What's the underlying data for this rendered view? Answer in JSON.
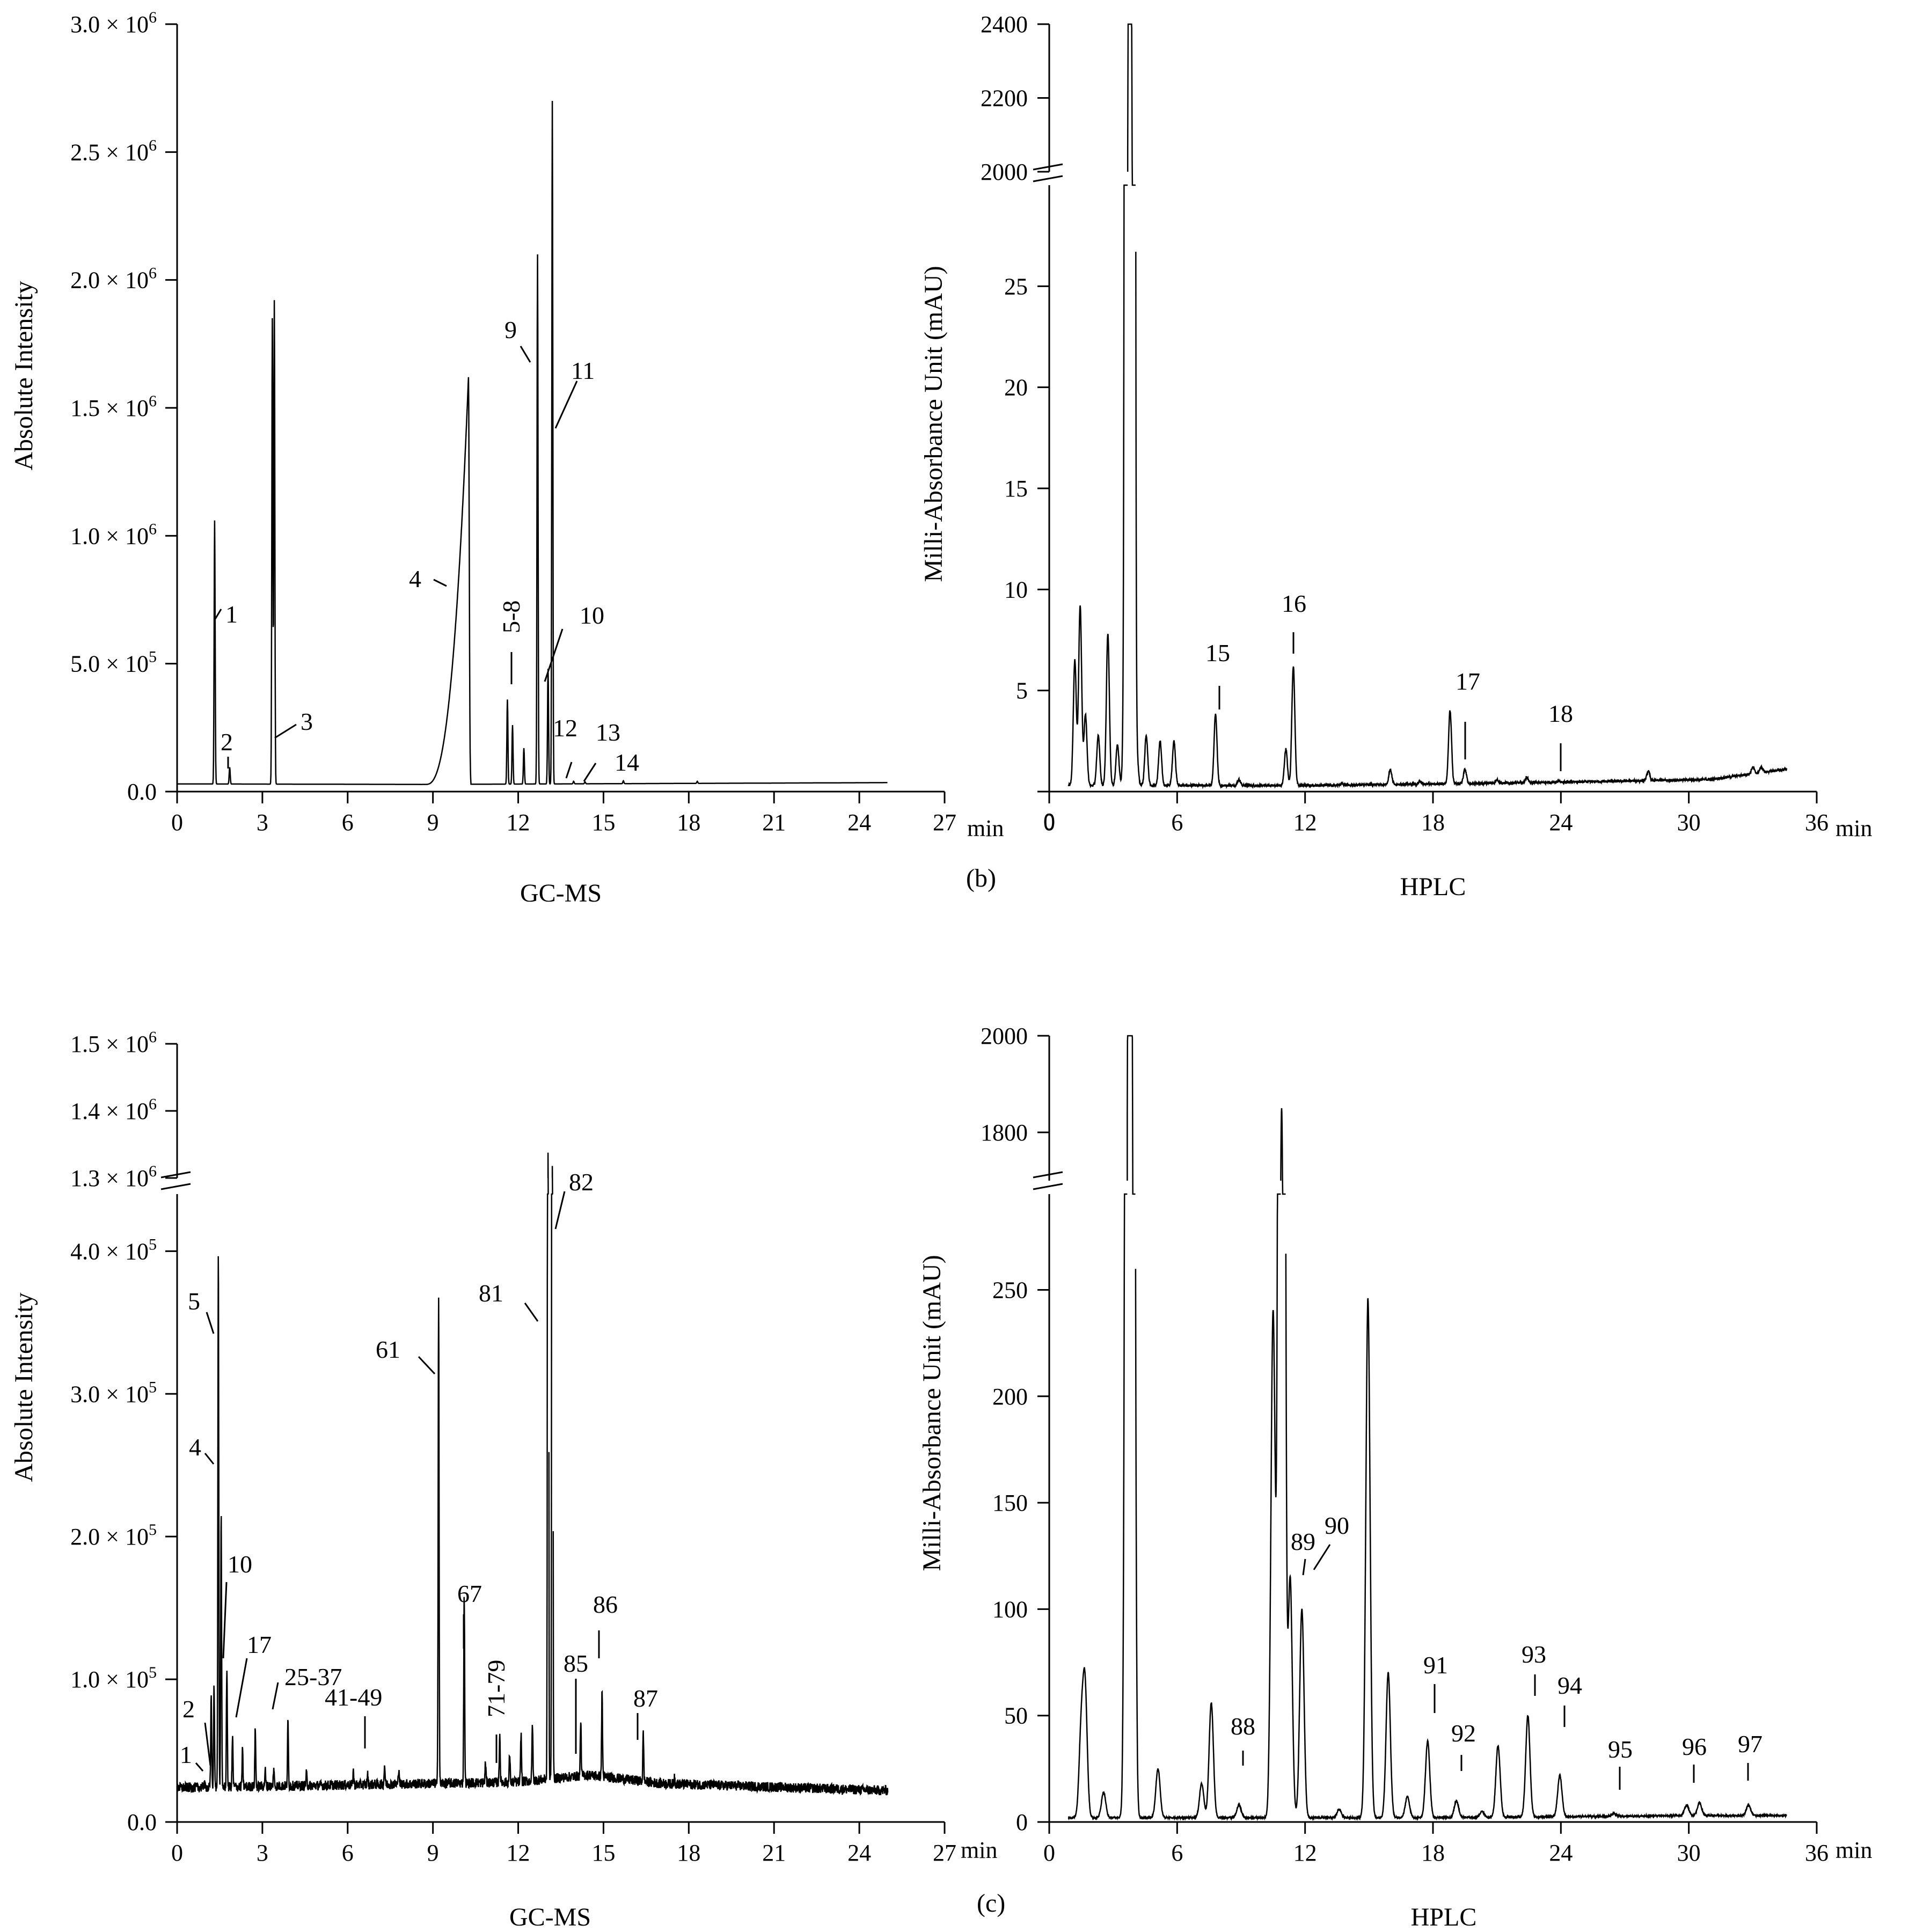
{
  "chart_data": [
    {
      "id": "a",
      "type": "line",
      "technique": "GC-MS",
      "xlabel": "GC-MS",
      "ylabel": "Absolute Intensity",
      "x_unit": "min",
      "xlim": [
        0,
        27
      ],
      "ylim": [
        0,
        3000000
      ],
      "x_ticks": [
        "0",
        "3",
        "6",
        "9",
        "12",
        "15",
        "18",
        "21",
        "24",
        "27"
      ],
      "y_ticks": [
        {
          "value": 0,
          "label": "0.0"
        },
        {
          "value": 500000,
          "label": "5.0 × 10",
          "exp": "5"
        },
        {
          "value": 1000000,
          "label": "1.0 × 10",
          "exp": "6"
        },
        {
          "value": 1500000,
          "label": "1.5 × 10",
          "exp": "6"
        },
        {
          "value": 2000000,
          "label": "2.0 × 10",
          "exp": "6"
        },
        {
          "value": 2500000,
          "label": "2.5 × 10",
          "exp": "6"
        },
        {
          "value": 3000000,
          "label": "3.0 × 10",
          "exp": "6"
        }
      ],
      "baseline": [
        [
          0,
          30000
        ],
        [
          8.6,
          28000
        ],
        [
          25,
          35000
        ]
      ],
      "broad_peaks": [
        {
          "x": 10.25,
          "y": 1620000,
          "left_width": 1.5,
          "right_width": 0.08
        }
      ],
      "peaks": [
        [
          1.32,
          1060000
        ],
        [
          1.85,
          95000
        ],
        [
          3.35,
          1850000
        ],
        [
          3.42,
          1920000
        ],
        [
          11.62,
          360000
        ],
        [
          11.8,
          260000
        ],
        [
          12.2,
          170000
        ],
        [
          12.68,
          2100000
        ],
        [
          13.05,
          480000
        ],
        [
          13.2,
          2700000
        ],
        [
          13.95,
          40000
        ],
        [
          14.35,
          38000
        ],
        [
          15.7,
          42000
        ],
        [
          18.3,
          40000
        ]
      ],
      "annotations": [
        "1",
        "2",
        "3",
        "4",
        "5-8",
        "9",
        "10",
        "11",
        "12",
        "13",
        "14"
      ]
    },
    {
      "id": "b",
      "type": "line",
      "technique": "HPLC",
      "panel_label": "(b)",
      "xlabel": "HPLC",
      "ylabel": "Milli-Absorbance Unit (mAU)",
      "x_unit": "min",
      "xlim": [
        0,
        36
      ],
      "ylim_lower": [
        0,
        30
      ],
      "ylim_upper": [
        2000,
        2400
      ],
      "x_ticks": [
        "0",
        "6",
        "12",
        "18",
        "24",
        "30",
        "36"
      ],
      "y_ticks_lower": [
        "5",
        "10",
        "15",
        "20",
        "25"
      ],
      "y_ticks_upper": [
        "2000",
        "2200",
        "2400"
      ],
      "baseline": [
        [
          0.9,
          0.3
        ],
        [
          12,
          0.3
        ],
        [
          20,
          0.4
        ],
        [
          26,
          0.5
        ],
        [
          31,
          0.6
        ],
        [
          34.5,
          1.1
        ]
      ],
      "peaks": [
        [
          1.2,
          6.5
        ],
        [
          1.45,
          9.2
        ],
        [
          1.7,
          3.8
        ],
        [
          2.3,
          2.8
        ],
        [
          2.75,
          7.8
        ],
        [
          3.2,
          2.3
        ],
        [
          3.55,
          6.5
        ],
        [
          3.72,
          2280
        ],
        [
          3.85,
          2250
        ],
        [
          4.1,
          2.0
        ],
        [
          4.55,
          2.8
        ],
        [
          5.2,
          2.5
        ],
        [
          5.85,
          2.5
        ],
        [
          7.8,
          3.8
        ],
        [
          8.9,
          0.6
        ],
        [
          11.1,
          2.1
        ],
        [
          11.45,
          6.2
        ],
        [
          13.7,
          0.4
        ],
        [
          16,
          1.1
        ],
        [
          17.4,
          0.5
        ],
        [
          18.8,
          4.0
        ],
        [
          19.5,
          1.1
        ],
        [
          21,
          0.6
        ],
        [
          22.4,
          0.7
        ],
        [
          23.9,
          0.5
        ],
        [
          28.1,
          1.0
        ],
        [
          33,
          1.2
        ],
        [
          33.4,
          1.2
        ]
      ],
      "annotations": [
        "15",
        "16",
        "17",
        "18"
      ]
    },
    {
      "id": "c-left",
      "type": "line",
      "technique": "GC-MS",
      "xlabel": "GC-MS",
      "ylabel": "Absolute Intensity",
      "x_unit": "min",
      "xlim": [
        0,
        27
      ],
      "ylim_lower": [
        0,
        440000
      ],
      "ylim_upper": [
        1300000,
        1500000
      ],
      "x_ticks": [
        "0",
        "3",
        "6",
        "9",
        "12",
        "15",
        "18",
        "21",
        "24",
        "27"
      ],
      "y_ticks_lower": [
        {
          "value": 0,
          "label": "0.0"
        },
        {
          "value": 100000,
          "label": "1.0 × 10",
          "exp": "5"
        },
        {
          "value": 200000,
          "label": "2.0 × 10",
          "exp": "5"
        },
        {
          "value": 300000,
          "label": "3.0 × 10",
          "exp": "5"
        },
        {
          "value": 400000,
          "label": "4.0 × 10",
          "exp": "5"
        }
      ],
      "y_ticks_upper": [
        {
          "value": 1300000,
          "label": "1.3 × 10",
          "exp": "6"
        },
        {
          "value": 1400000,
          "label": "1.4 × 10",
          "exp": "6"
        },
        {
          "value": 1500000,
          "label": "1.5 × 10",
          "exp": "6"
        }
      ],
      "baseline": [
        [
          0,
          24000
        ],
        [
          6,
          26000
        ],
        [
          12,
          28000
        ],
        [
          14.5,
          33000
        ],
        [
          17,
          27000
        ],
        [
          25,
          22000
        ]
      ],
      "peaks": [
        [
          0.95,
          28000
        ],
        [
          1.2,
          90000
        ],
        [
          1.3,
          95000
        ],
        [
          1.45,
          400000
        ],
        [
          1.55,
          215000
        ],
        [
          1.75,
          108000
        ],
        [
          1.95,
          60000
        ],
        [
          2.3,
          50000
        ],
        [
          2.75,
          65000
        ],
        [
          3.1,
          36000
        ],
        [
          3.4,
          38000
        ],
        [
          3.9,
          70000
        ],
        [
          4.55,
          34000
        ],
        [
          6.2,
          36000
        ],
        [
          6.7,
          33000
        ],
        [
          7.3,
          40000
        ],
        [
          7.8,
          38000
        ],
        [
          9.2,
          370000
        ],
        [
          10.1,
          160000
        ],
        [
          10.85,
          42000
        ],
        [
          11.35,
          62000
        ],
        [
          11.7,
          48000
        ],
        [
          12.1,
          62000
        ],
        [
          12.5,
          70000
        ],
        [
          13.05,
          1350000
        ],
        [
          13.2,
          1320000
        ],
        [
          14.2,
          72000
        ],
        [
          14.95,
          92000
        ],
        [
          16.4,
          62000
        ],
        [
          17.5,
          32000
        ]
      ],
      "annotations": [
        "1",
        "2",
        "4",
        "5",
        "10",
        "17",
        "25-37",
        "41-49",
        "61",
        "67",
        "71-79",
        "81",
        "82",
        "85",
        "86",
        "87"
      ]
    },
    {
      "id": "c",
      "type": "line",
      "technique": "HPLC",
      "panel_label": "(c)",
      "xlabel": "HPLC",
      "ylabel": "Milli-Absorbance Unit (mAU)",
      "x_unit": "min",
      "xlim": [
        0,
        36
      ],
      "ylim_lower": [
        0,
        295
      ],
      "ylim_upper": [
        1700,
        2000
      ],
      "x_ticks": [
        "0",
        "6",
        "12",
        "18",
        "24",
        "30",
        "36"
      ],
      "y_ticks_lower": [
        "0",
        "50",
        "100",
        "150",
        "200",
        "250"
      ],
      "y_ticks_upper": [
        "1800",
        "2000"
      ],
      "baseline": [
        [
          0.9,
          2
        ],
        [
          6,
          2
        ],
        [
          18,
          2
        ],
        [
          30,
          3
        ],
        [
          34.5,
          3
        ]
      ],
      "peaks": [
        [
          1.5,
          42
        ],
        [
          1.68,
          62
        ],
        [
          2.55,
          14
        ],
        [
          3.72,
          1840
        ],
        [
          3.85,
          1850
        ],
        [
          5.1,
          25
        ],
        [
          7.15,
          18
        ],
        [
          7.6,
          56
        ],
        [
          8.9,
          8
        ],
        [
          10.5,
          240
        ],
        [
          10.9,
          1850
        ],
        [
          11.3,
          115
        ],
        [
          11.85,
          100
        ],
        [
          13.6,
          6
        ],
        [
          14.95,
          246
        ],
        [
          15.9,
          70
        ],
        [
          16.8,
          12
        ],
        [
          17.75,
          38
        ],
        [
          19.1,
          10
        ],
        [
          20.3,
          5
        ],
        [
          21.05,
          36
        ],
        [
          22.45,
          50
        ],
        [
          23.95,
          22
        ],
        [
          26.5,
          4
        ],
        [
          29.9,
          8
        ],
        [
          30.5,
          9
        ],
        [
          32.8,
          8
        ]
      ],
      "annotations": [
        "88",
        "89",
        "90",
        "91",
        "92",
        "93",
        "94",
        "95",
        "96",
        "97"
      ]
    }
  ]
}
